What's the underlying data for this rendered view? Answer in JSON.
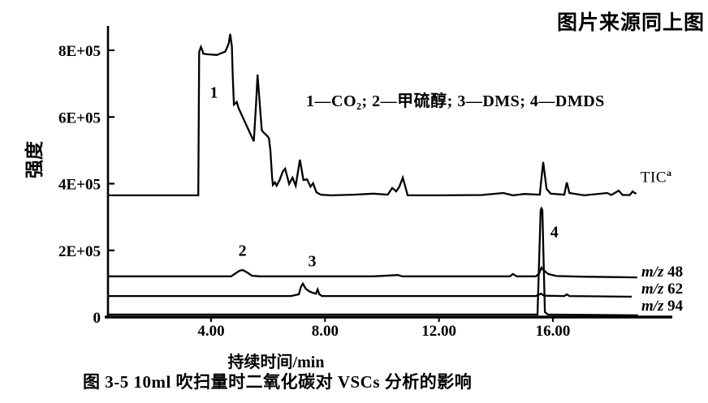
{
  "page": {
    "source_note": "图片来源同上图",
    "caption": "图 3-5  10ml 吹扫量时二氧化碳对 VSCs 分析的影响"
  },
  "legend": {
    "text": "1—CO₂; 2—甲硫醇; 3—DMS; 4—DMDS"
  },
  "chart_data": {
    "type": "line",
    "title": "",
    "xlabel": "持续时间/min",
    "ylabel": "强度",
    "xlim": [
      0.38,
      20.2
    ],
    "ylim": [
      0,
      873000
    ],
    "grid": false,
    "x_ticks": [
      {
        "t": 4,
        "label": "4.00"
      },
      {
        "t": 8,
        "label": "8.00"
      },
      {
        "t": 12,
        "label": "12.00"
      },
      {
        "t": 16,
        "label": "16.00"
      }
    ],
    "y_ticks": [
      {
        "v": 0,
        "label": "0"
      },
      {
        "v": 200000,
        "label": "2E+05"
      },
      {
        "v": 400000,
        "label": "4E+05"
      },
      {
        "v": 600000,
        "label": "6E+05"
      },
      {
        "v": 800000,
        "label": "8E+05"
      }
    ],
    "series": [
      {
        "name": "TIC",
        "points": [
          [
            0.38,
            365000
          ],
          [
            2.0,
            365000
          ],
          [
            3.5,
            365000
          ],
          [
            3.55,
            365000
          ],
          [
            3.58,
            795000
          ],
          [
            3.64,
            810000
          ],
          [
            3.7,
            798000
          ],
          [
            3.72,
            790000
          ],
          [
            3.85,
            788000
          ],
          [
            4.2,
            786000
          ],
          [
            4.5,
            796000
          ],
          [
            4.62,
            820000
          ],
          [
            4.67,
            849000
          ],
          [
            4.73,
            812000
          ],
          [
            4.76,
            720000
          ],
          [
            4.8,
            637000
          ],
          [
            4.84,
            640000
          ],
          [
            4.9,
            645000
          ],
          [
            4.96,
            627000
          ],
          [
            5.5,
            527000
          ],
          [
            5.58,
            640000
          ],
          [
            5.63,
            727000
          ],
          [
            5.68,
            672000
          ],
          [
            5.78,
            560000
          ],
          [
            5.86,
            552000
          ],
          [
            5.95,
            545000
          ],
          [
            6.03,
            537000
          ],
          [
            6.08,
            500000
          ],
          [
            6.14,
            420000
          ],
          [
            6.17,
            396000
          ],
          [
            6.24,
            404000
          ],
          [
            6.3,
            394000
          ],
          [
            6.4,
            410000
          ],
          [
            6.52,
            437000
          ],
          [
            6.6,
            445000
          ],
          [
            6.74,
            399000
          ],
          [
            6.86,
            418000
          ],
          [
            6.97,
            394000
          ],
          [
            7.12,
            472000
          ],
          [
            7.24,
            411000
          ],
          [
            7.37,
            413000
          ],
          [
            7.49,
            391000
          ],
          [
            7.58,
            401000
          ],
          [
            7.7,
            374000
          ],
          [
            7.85,
            367000
          ],
          [
            8.2,
            365000
          ],
          [
            9.0,
            367000
          ],
          [
            9.7,
            370000
          ],
          [
            10.2,
            367000
          ],
          [
            10.36,
            387000
          ],
          [
            10.5,
            377000
          ],
          [
            10.61,
            391000
          ],
          [
            10.73,
            418000
          ],
          [
            10.82,
            391000
          ],
          [
            10.9,
            365000
          ],
          [
            12.0,
            365000
          ],
          [
            13.5,
            366000
          ],
          [
            14.26,
            372000
          ],
          [
            14.6,
            365000
          ],
          [
            15.0,
            369000
          ],
          [
            15.54,
            367000
          ],
          [
            15.66,
            465000
          ],
          [
            15.78,
            384000
          ],
          [
            15.92,
            370000
          ],
          [
            16.4,
            367000
          ],
          [
            16.49,
            404000
          ],
          [
            16.58,
            372000
          ],
          [
            17.1,
            365000
          ],
          [
            17.91,
            372000
          ],
          [
            18.05,
            366000
          ],
          [
            18.31,
            379000
          ],
          [
            18.45,
            366000
          ],
          [
            18.7,
            366000
          ],
          [
            18.8,
            377000
          ],
          [
            18.87,
            372000
          ],
          [
            18.93,
            370000
          ]
        ]
      },
      {
        "name": "m/z 48",
        "points": [
          [
            0.38,
            122000
          ],
          [
            3.0,
            122000
          ],
          [
            4.7,
            122000
          ],
          [
            4.86,
            131000
          ],
          [
            5.0,
            139000
          ],
          [
            5.11,
            141000
          ],
          [
            5.26,
            134000
          ],
          [
            5.43,
            124000
          ],
          [
            5.72,
            122000
          ],
          [
            9.7,
            122000
          ],
          [
            10.56,
            126000
          ],
          [
            10.72,
            122000
          ],
          [
            14.49,
            122000
          ],
          [
            14.6,
            129000
          ],
          [
            14.73,
            122000
          ],
          [
            15.4,
            122000
          ],
          [
            15.52,
            131000
          ],
          [
            15.6,
            148000
          ],
          [
            15.69,
            139000
          ],
          [
            15.84,
            129000
          ],
          [
            16.12,
            123000
          ],
          [
            17.0,
            121000
          ],
          [
            18.96,
            119000
          ]
        ]
      },
      {
        "name": "m/z 62",
        "points": [
          [
            0.38,
            63000
          ],
          [
            4.0,
            63000
          ],
          [
            6.8,
            63000
          ],
          [
            7.08,
            68000
          ],
          [
            7.16,
            92000
          ],
          [
            7.22,
            100000
          ],
          [
            7.32,
            85000
          ],
          [
            7.43,
            78000
          ],
          [
            7.56,
            73000
          ],
          [
            7.68,
            70000
          ],
          [
            7.74,
            83000
          ],
          [
            7.8,
            68000
          ],
          [
            7.89,
            63000
          ],
          [
            12.0,
            63000
          ],
          [
            15.4,
            63000
          ],
          [
            15.58,
            70000
          ],
          [
            15.7,
            64000
          ],
          [
            16.4,
            63000
          ],
          [
            16.49,
            68000
          ],
          [
            16.58,
            63000
          ],
          [
            18.77,
            61000
          ]
        ]
      },
      {
        "name": "m/z 94",
        "points": [
          [
            0.38,
            7500
          ],
          [
            8.0,
            7500
          ],
          [
            15.46,
            7500
          ],
          [
            15.57,
            321000
          ],
          [
            15.6,
            326000
          ],
          [
            15.63,
            321000
          ],
          [
            15.72,
            15000
          ],
          [
            15.82,
            7500
          ],
          [
            18.99,
            5000
          ]
        ]
      }
    ],
    "trace_labels": [
      {
        "prefix": "",
        "text": "TIC",
        "sup": "a",
        "t": 19.02,
        "v": 432000
      },
      {
        "prefix": "m/z",
        "text": "48",
        "sup": "",
        "t": 19.05,
        "v": 134000
      },
      {
        "prefix": "m/z",
        "text": "62",
        "sup": "",
        "t": 19.05,
        "v": 83000
      },
      {
        "prefix": "m/z",
        "text": "94",
        "sup": "",
        "t": 19.05,
        "v": 32000
      }
    ],
    "peak_labels": [
      {
        "text": "1",
        "t": 4.1,
        "v": 672000
      },
      {
        "text": "2",
        "t": 5.1,
        "v": 196000
      },
      {
        "text": "3",
        "t": 7.55,
        "v": 166000
      },
      {
        "text": "4",
        "t": 16.05,
        "v": 254000
      }
    ]
  }
}
